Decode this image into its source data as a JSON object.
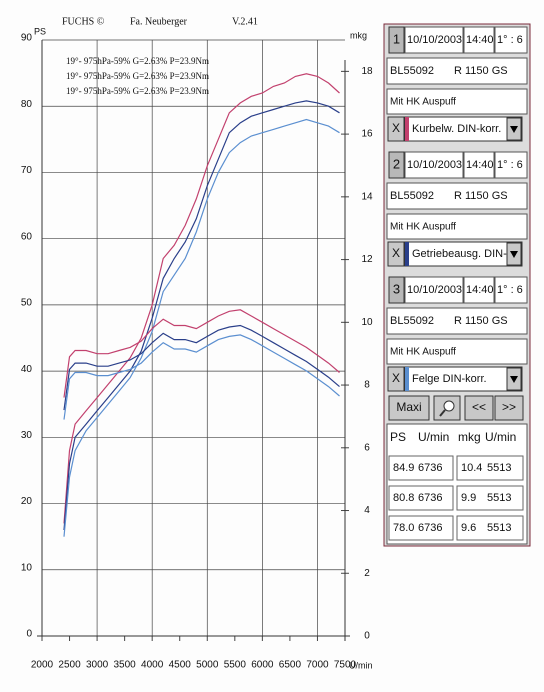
{
  "chart_data": {
    "type": "line",
    "header": [
      "FUCHS ©",
      "Fa. Neuberger",
      "V.2.41"
    ],
    "y_label": "PS",
    "y2_label": "mkg",
    "x_label": "U/min",
    "x": [
      2400,
      2500,
      2600,
      2800,
      3000,
      3200,
      3400,
      3600,
      3800,
      4000,
      4200,
      4400,
      4600,
      4800,
      5000,
      5200,
      5400,
      5600,
      5800,
      6000,
      6200,
      6400,
      6600,
      6800,
      7000,
      7200,
      7400
    ],
    "xlim": [
      2000,
      7500
    ],
    "xticks": [
      2000,
      2500,
      3000,
      3500,
      4000,
      4500,
      5000,
      5500,
      6000,
      6500,
      7000,
      7500
    ],
    "ylim": [
      0,
      90
    ],
    "yticks": [
      0,
      10,
      20,
      30,
      40,
      50,
      60,
      70,
      80,
      90
    ],
    "y2lim": [
      0,
      19
    ],
    "y2ticks": [
      0,
      2,
      4,
      6,
      8,
      10,
      12,
      14,
      16,
      18
    ],
    "grid": true,
    "series": [
      {
        "name": "19°- 975hPa-59% G=2.63% P=23.9Nm",
        "color": "#c2416e",
        "values": [
          17,
          28,
          32,
          34,
          36,
          38,
          40,
          42,
          45,
          50,
          57,
          59,
          62,
          66,
          71,
          75,
          79,
          80.5,
          81.5,
          82,
          83,
          83.5,
          84.5,
          84.9,
          84.5,
          83.5,
          82
        ]
      },
      {
        "name": "19°- 975hPa-59% G=2.63% P=23.9Nm",
        "color": "#2a3f8a",
        "values": [
          16,
          26,
          30,
          32,
          34,
          36,
          38,
          40,
          43,
          48,
          54,
          57,
          59.5,
          63,
          68,
          72,
          76,
          77.5,
          78.5,
          79,
          79.5,
          80,
          80.5,
          80.8,
          80.5,
          80,
          79
        ]
      },
      {
        "name": "19°- 975hPa-59% G=2.63% P=23.9Nm",
        "color": "#5b8fd0",
        "values": [
          15,
          24,
          28,
          31,
          33,
          35,
          37,
          39,
          42,
          46,
          52,
          54.5,
          57,
          61,
          66,
          70,
          73,
          74.5,
          75.5,
          76,
          76.5,
          77,
          77.5,
          78,
          77.5,
          77,
          76
        ]
      },
      {
        "color": "#c2416e",
        "axis": "y2",
        "values": [
          7.6,
          8.9,
          9.1,
          9.1,
          9.0,
          9.0,
          9.1,
          9.2,
          9.4,
          9.8,
          10.1,
          9.9,
          9.9,
          9.8,
          10.0,
          10.2,
          10.35,
          10.4,
          10.2,
          10.0,
          9.8,
          9.6,
          9.4,
          9.2,
          8.95,
          8.7,
          8.4
        ]
      },
      {
        "color": "#2a3f8a",
        "axis": "y2",
        "values": [
          7.2,
          8.5,
          8.7,
          8.7,
          8.6,
          8.6,
          8.7,
          8.8,
          9.0,
          9.35,
          9.65,
          9.45,
          9.45,
          9.35,
          9.55,
          9.75,
          9.85,
          9.9,
          9.75,
          9.55,
          9.35,
          9.15,
          8.95,
          8.75,
          8.5,
          8.25,
          7.95
        ]
      },
      {
        "color": "#5b8fd0",
        "axis": "y2",
        "values": [
          6.9,
          8.2,
          8.4,
          8.4,
          8.3,
          8.3,
          8.4,
          8.5,
          8.7,
          9.05,
          9.35,
          9.15,
          9.15,
          9.05,
          9.25,
          9.45,
          9.55,
          9.6,
          9.45,
          9.25,
          9.05,
          8.85,
          8.65,
          8.45,
          8.2,
          7.95,
          7.65
        ]
      }
    ]
  },
  "panel": {
    "runs": [
      {
        "number": "1",
        "date": "10/10/2003",
        "time": "14:40",
        "ratio": "1° : 6",
        "id": "BL55092",
        "model": "R 1150 GS",
        "note": "Mit HK Auspuff",
        "close": "X",
        "filter": "Kurbelw. DIN-korr."
      },
      {
        "number": "2",
        "date": "10/10/2003",
        "time": "14:40",
        "ratio": "1° : 6",
        "id": "BL55092",
        "model": "R 1150 GS",
        "note": "Mit HK Auspuff",
        "close": "X",
        "filter": "Getriebeausg. DIN-kc"
      },
      {
        "number": "3",
        "date": "10/10/2003",
        "time": "14:40",
        "ratio": "1° : 6",
        "id": "BL55092",
        "model": "R 1150 GS",
        "note": "Mit HK Auspuff",
        "close": "X",
        "filter": "Felge DIN-korr."
      }
    ],
    "buttons": [
      "Maxi",
      "<<",
      ">>"
    ],
    "table": {
      "header": [
        "PS",
        "U/min",
        "mkg",
        "U/min"
      ],
      "rows": [
        [
          "84.9",
          "6736",
          "10.4",
          "5513"
        ],
        [
          "80.8",
          "6736",
          "9.9",
          "5513"
        ],
        [
          "78.0",
          "6736",
          "9.6",
          "5513"
        ]
      ]
    }
  }
}
